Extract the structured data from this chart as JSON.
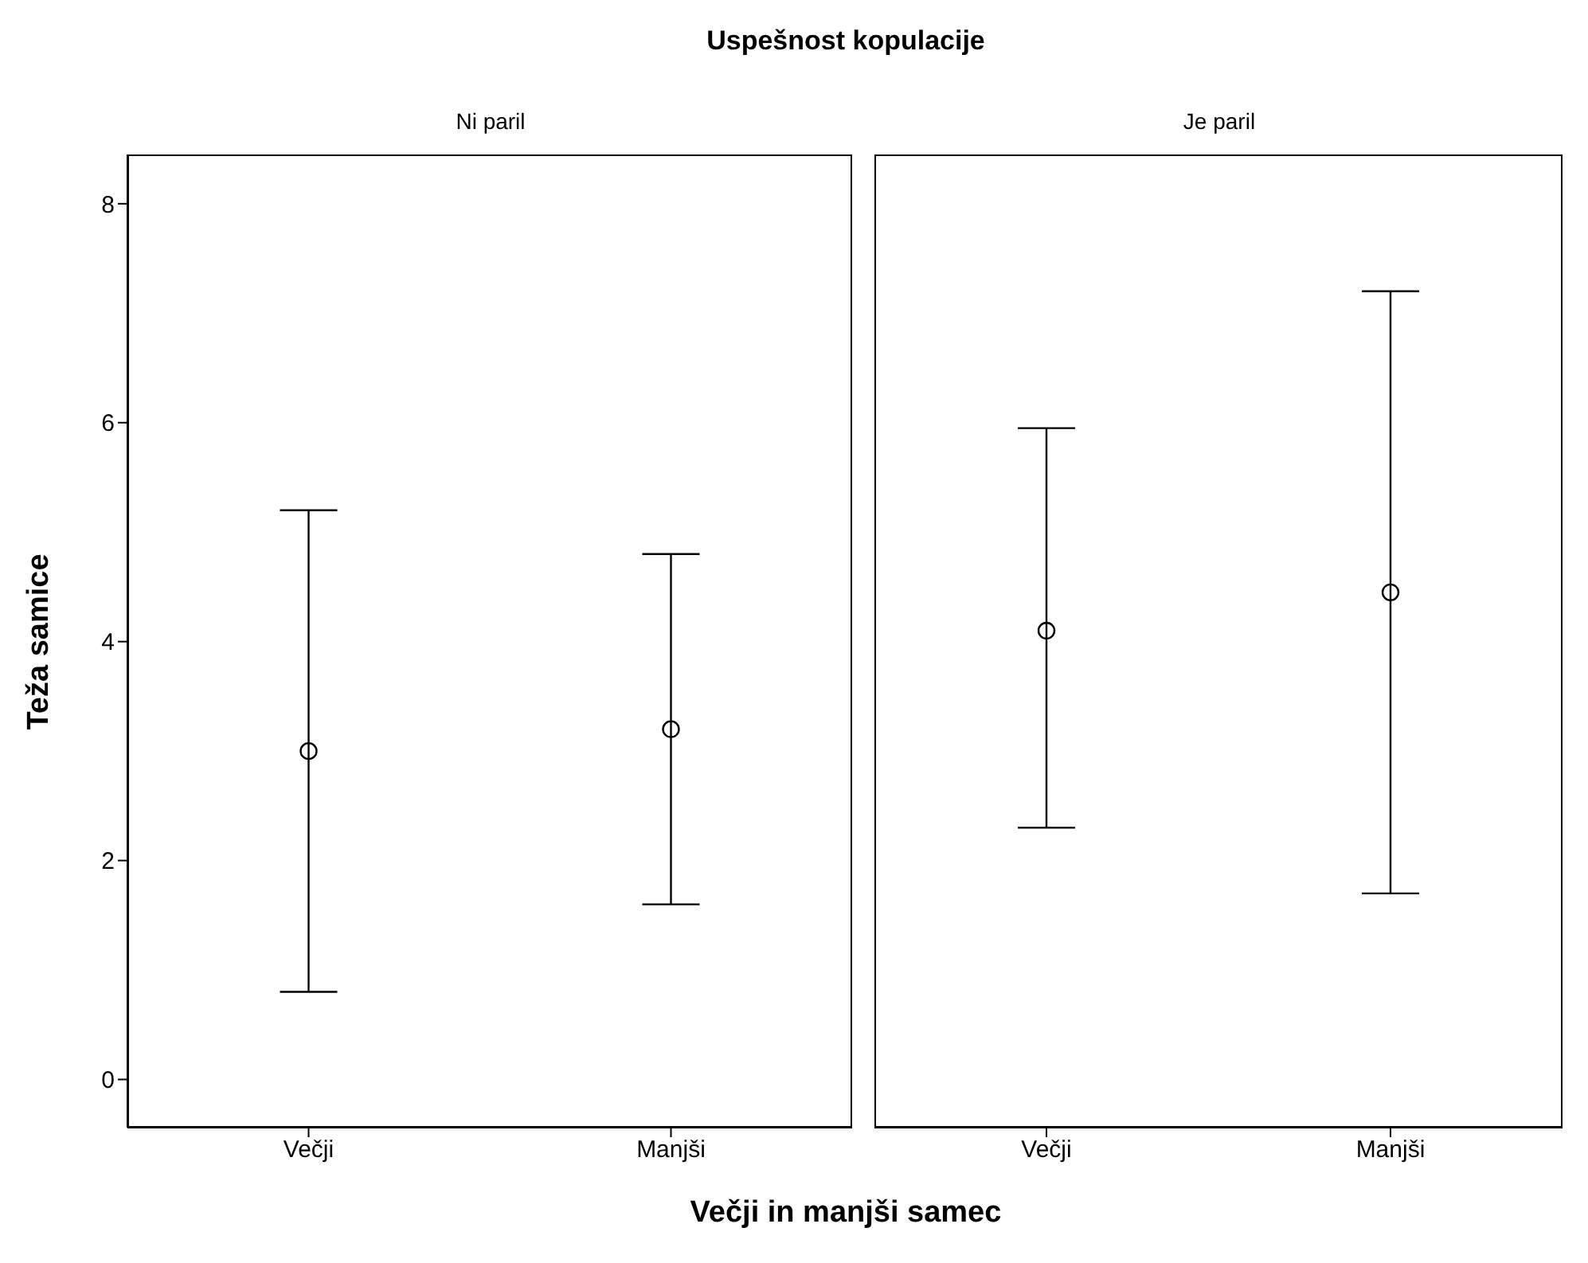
{
  "chart_data": [
    {
      "type": "scatter",
      "title": "Uspešnost kopulacije",
      "subtitle": "Ni paril",
      "xlabel": "Večji in manjši samec",
      "ylabel": "Teža samice",
      "categories": [
        "Večji",
        "Manjši"
      ],
      "values": [
        3.0,
        3.2
      ],
      "errors": [
        [
          0.8,
          5.2
        ],
        [
          1.6,
          4.8
        ]
      ],
      "color": "#000000",
      "marker": "circle",
      "ylim": [
        -0.44,
        8.45
      ],
      "yticks": [
        0,
        2,
        4,
        6,
        8
      ]
    },
    {
      "type": "scatter",
      "subtitle": "Je paril",
      "categories": [
        "Večji",
        "Manjši"
      ],
      "values": [
        4.1,
        4.45
      ],
      "errors": [
        [
          2.3,
          5.95
        ],
        [
          1.7,
          7.2
        ]
      ],
      "color": "#000000",
      "marker": "circle",
      "ylim": [
        -0.44,
        8.45
      ],
      "yticks": [
        0,
        2,
        4,
        6,
        8
      ],
      "tick_labels": "x"
    }
  ]
}
